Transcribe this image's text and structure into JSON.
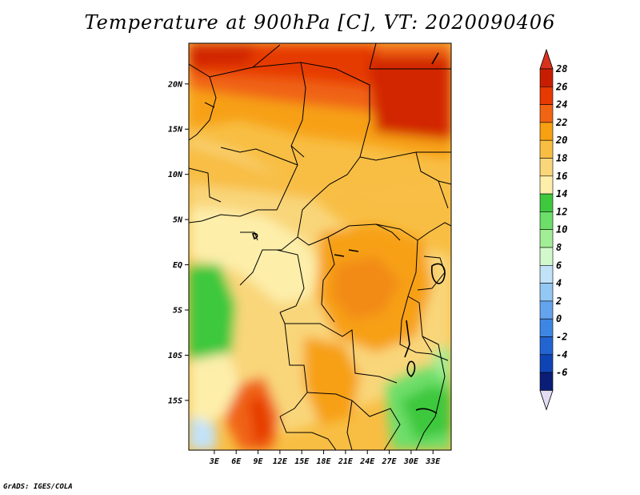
{
  "title": "Temperature at 900hPa [C], VT: 2020090406",
  "credit": "GrADS: IGES/COLA",
  "map": {
    "lon_range": [
      -0.5,
      35.5
    ],
    "lat_range": [
      -20.5,
      24.5
    ],
    "lat_labels": [
      "20N",
      "15N",
      "10N",
      "5N",
      "EQ",
      "5S",
      "10S",
      "15S"
    ],
    "lat_values": [
      20,
      15,
      10,
      5,
      0,
      -5,
      -10,
      -15
    ],
    "lon_labels": [
      "3E",
      "6E",
      "9E",
      "12E",
      "15E",
      "18E",
      "21E",
      "24E",
      "27E",
      "30E",
      "33E"
    ],
    "lon_values": [
      3,
      6,
      9,
      12,
      15,
      18,
      21,
      24,
      27,
      30,
      33
    ]
  },
  "colorbar": {
    "labels": [
      "28",
      "26",
      "24",
      "22",
      "20",
      "18",
      "16",
      "14",
      "12",
      "10",
      "8",
      "6",
      "4",
      "2",
      "0",
      "-2",
      "-4",
      "-6"
    ],
    "colors": [
      "#c81e00",
      "#e63a00",
      "#f06414",
      "#f7a012",
      "#f8be44",
      "#f9d67a",
      "#fdeeaa",
      "#3ec83e",
      "#6ede6a",
      "#a2ee96",
      "#d2f9cc",
      "#c2e2f8",
      "#94c8f4",
      "#64a4ee",
      "#3e86e4",
      "#2264d2",
      "#0e44b4",
      "#0a1e78"
    ],
    "top_color": "#d8321e",
    "bottom_color": "#e2dcf4"
  }
}
